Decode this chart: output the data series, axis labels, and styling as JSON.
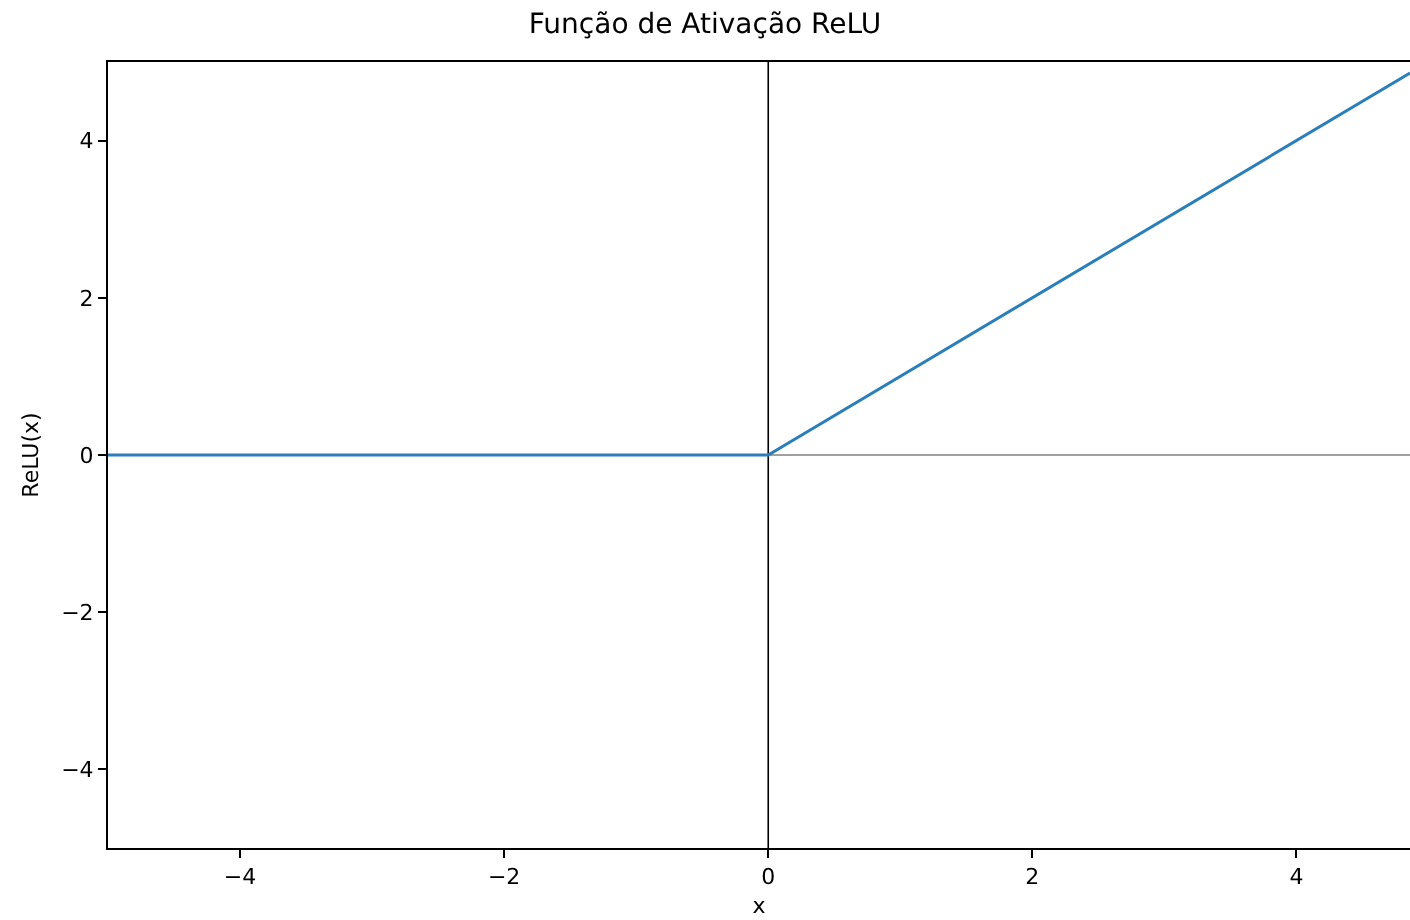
{
  "chart_data": {
    "type": "line",
    "title": "Função de Ativação ReLU",
    "xlabel": "x",
    "ylabel": "ReLU(x)",
    "x": [
      -5,
      0,
      4.86
    ],
    "series": [
      {
        "color": "#2a7fba",
        "values": [
          0,
          0,
          4.86
        ]
      }
    ],
    "xlim": [
      -5,
      4.86
    ],
    "ylim": [
      -5,
      5
    ],
    "xticks": [
      {
        "value": -4,
        "label": "−4"
      },
      {
        "value": -2,
        "label": "−2"
      },
      0,
      2,
      4
    ],
    "yticks": [
      {
        "value": -4,
        "label": "−4"
      },
      {
        "value": -2,
        "label": "−2"
      },
      0,
      2,
      4
    ],
    "ref_lines": [
      {
        "axis": "x",
        "value": 0,
        "color": "#000000"
      },
      {
        "axis": "y",
        "value": 0,
        "color": "#808080"
      }
    ],
    "grid": false,
    "marker": "none",
    "line_style": "solid"
  }
}
